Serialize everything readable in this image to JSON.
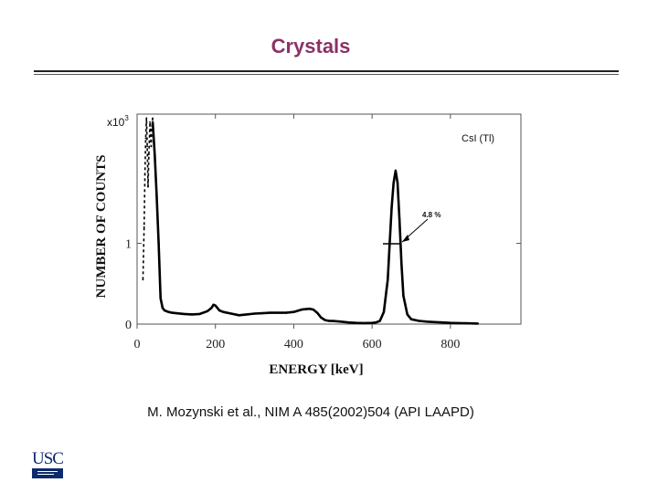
{
  "slide": {
    "title": "Crystals",
    "citation": "M. Mozynski et al., NIM A 485(2002)504  (API LAAPD)",
    "logo_text": "USC"
  },
  "chart_data": {
    "type": "line",
    "xlabel": "ENERGY [keV]",
    "ylabel": "NUMBER OF COUNTS",
    "y_multiplier_label": "x10",
    "y_multiplier_exponent": "3",
    "legend": "CsI (Tl)",
    "annotation": "4.8 %",
    "x_ticks": [
      "0",
      "200",
      "400",
      "600",
      "800"
    ],
    "y_ticks": [
      "0",
      "1"
    ],
    "xlim": [
      0,
      980
    ],
    "ylim": [
      0,
      2.6
    ],
    "series": [
      {
        "x": [
          40,
          45,
          50,
          55,
          60,
          65,
          70,
          80,
          90,
          100,
          120,
          140,
          160,
          180,
          190,
          195,
          200,
          205,
          210,
          220,
          240,
          260,
          280,
          300,
          320,
          340,
          360,
          380,
          400,
          420,
          440,
          450,
          460,
          470,
          480,
          490,
          500,
          520,
          540,
          560,
          580,
          600,
          610,
          620,
          630,
          640,
          645,
          650,
          655,
          660,
          665,
          670,
          675,
          680,
          690,
          700,
          720,
          740,
          760,
          780,
          800,
          820,
          840,
          860,
          870
        ],
        "y": [
          2.5,
          2.1,
          1.6,
          1.0,
          0.32,
          0.2,
          0.17,
          0.15,
          0.14,
          0.135,
          0.125,
          0.12,
          0.125,
          0.16,
          0.2,
          0.24,
          0.23,
          0.2,
          0.17,
          0.15,
          0.13,
          0.11,
          0.12,
          0.13,
          0.135,
          0.14,
          0.14,
          0.14,
          0.15,
          0.18,
          0.19,
          0.18,
          0.14,
          0.08,
          0.05,
          0.04,
          0.038,
          0.03,
          0.02,
          0.015,
          0.013,
          0.015,
          0.02,
          0.04,
          0.15,
          0.55,
          1.0,
          1.45,
          1.75,
          1.9,
          1.75,
          1.3,
          0.75,
          0.35,
          0.12,
          0.06,
          0.04,
          0.03,
          0.025,
          0.02,
          0.015,
          0.012,
          0.01,
          0.008,
          0.007
        ]
      },
      {
        "style": "dashed",
        "x": [
          15,
          18,
          20,
          22,
          24,
          26,
          28,
          30,
          33,
          36,
          38,
          40
        ],
        "y": [
          0.55,
          1.2,
          1.85,
          2.3,
          2.55,
          2.2,
          1.7,
          2.1,
          2.5,
          2.2,
          2.45,
          2.55
        ]
      }
    ]
  }
}
